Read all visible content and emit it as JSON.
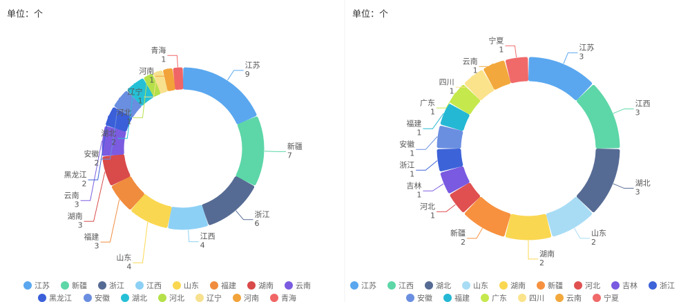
{
  "chart_data": [
    {
      "type": "donut",
      "unit_label": "单位：个",
      "categories": [
        "江苏",
        "新疆",
        "浙江",
        "江西",
        "山东",
        "福建",
        "湖南",
        "云南",
        "黑龙江",
        "安徽",
        "湖北",
        "河北",
        "辽宁",
        "河南",
        "青海"
      ],
      "values": [
        9,
        7,
        6,
        4,
        4,
        3,
        3,
        3,
        2,
        2,
        2,
        1,
        1,
        1,
        1
      ],
      "colors": [
        "#5aa7ef",
        "#5dd6a8",
        "#566b94",
        "#8dd0f5",
        "#fad751",
        "#f08c3e",
        "#d94a4a",
        "#7b5ce0",
        "#3a5fd9",
        "#6a8ee0",
        "#26c0d6",
        "#b5e04a",
        "#f7e08e",
        "#f2a33a",
        "#f06666"
      ]
    },
    {
      "type": "donut",
      "unit_label": "单位：个",
      "categories": [
        "江苏",
        "江西",
        "湖北",
        "山东",
        "湖南",
        "新疆",
        "河北",
        "吉林",
        "浙江",
        "安徽",
        "福建",
        "广东",
        "四川",
        "云南",
        "宁夏"
      ],
      "values": [
        3,
        3,
        3,
        2,
        2,
        2,
        1,
        1,
        1,
        1,
        1,
        1,
        1,
        1,
        1
      ],
      "colors": [
        "#5aa7ef",
        "#5dd6a8",
        "#566b94",
        "#a8dcf5",
        "#fad751",
        "#f7913f",
        "#e05050",
        "#7a5ae0",
        "#3d63d9",
        "#6b8fe0",
        "#24b8d4",
        "#c5e84c",
        "#fbe38c",
        "#f2a83c",
        "#f06a6a"
      ]
    }
  ]
}
